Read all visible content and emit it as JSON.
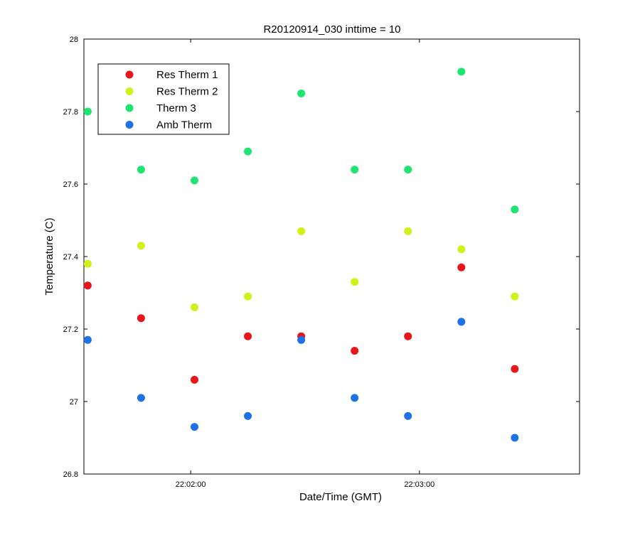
{
  "chart_data": {
    "type": "scatter",
    "title": "R20120914_030 inttime = 10",
    "xlabel": "Date/Time (GMT)",
    "ylabel": "Temperature (C)",
    "ylim": [
      26.8,
      28
    ],
    "xlim": [
      "22:01:32",
      "22:03:42"
    ],
    "yticks": [
      "26.8",
      "27",
      "27.2",
      "27.4",
      "27.6",
      "27.8",
      "28"
    ],
    "xticks": [
      "22:02:00",
      "22:03:00"
    ],
    "grid": false,
    "legend_position": "top-left",
    "x": [
      "22:01:33",
      "22:01:47",
      "22:02:01",
      "22:02:15",
      "22:02:29",
      "22:02:43",
      "22:02:57",
      "22:03:11",
      "22:03:25"
    ],
    "series": [
      {
        "name": "Res Therm 1",
        "color": "#e8161b",
        "values": [
          27.32,
          27.23,
          27.06,
          27.18,
          27.18,
          27.14,
          27.18,
          27.37,
          27.09
        ]
      },
      {
        "name": "Res Therm 2",
        "color": "#d2f118",
        "values": [
          27.38,
          27.43,
          27.26,
          27.29,
          27.47,
          27.33,
          27.47,
          27.42,
          27.29
        ]
      },
      {
        "name": "Therm 3",
        "color": "#1ee570",
        "values": [
          27.8,
          27.64,
          27.61,
          27.69,
          27.85,
          27.64,
          27.64,
          27.91,
          27.53
        ]
      },
      {
        "name": "Amb Therm",
        "color": "#1c72e6",
        "values": [
          27.17,
          27.01,
          26.93,
          26.96,
          27.17,
          27.01,
          26.96,
          27.22,
          26.9
        ]
      }
    ]
  }
}
